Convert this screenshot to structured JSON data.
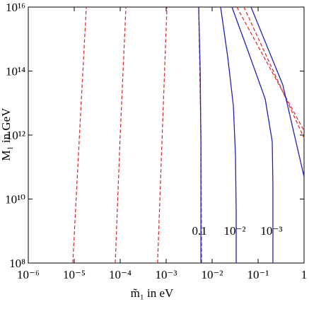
{
  "chart_data": {
    "type": "line",
    "x_label": "m̃₁ in eV",
    "y_label": "M₁ in GeV",
    "xscale": "log",
    "yscale": "log",
    "xlim": [
      1e-06,
      1
    ],
    "ylim": [
      100000000.0,
      1e+16
    ],
    "xticks": [
      {
        "value": 1e-06,
        "label": "10⁻⁶"
      },
      {
        "value": 1e-05,
        "label": "10⁻⁵"
      },
      {
        "value": 0.0001,
        "label": "10⁻⁴"
      },
      {
        "value": 0.001,
        "label": "10⁻³"
      },
      {
        "value": 0.01,
        "label": "10⁻²"
      },
      {
        "value": 0.1,
        "label": "10⁻¹"
      },
      1
    ],
    "yticks": [
      {
        "value": 100000000.0,
        "label": "10⁸"
      },
      {
        "value": 10000000000.0,
        "label": "10¹⁰"
      },
      {
        "value": 1000000000000.0,
        "label": "10¹²"
      },
      {
        "value": 100000000000000.0,
        "label": "10¹⁴"
      },
      {
        "value": 1e+16,
        "label": "10¹⁶"
      }
    ],
    "series": [
      {
        "color": "#e03030",
        "style": "dashed",
        "x": [
          9.3e-06,
          1.3e-05,
          1.83e-05
        ],
        "values": [
          100000000.0,
          1000000000000.0,
          1e+16
        ]
      },
      {
        "color": "#e03030",
        "style": "dashed",
        "x": [
          7.8e-05,
          0.0001,
          0.000133
        ],
        "values": [
          100000000.0,
          1000000000000.0,
          1e+16
        ]
      },
      {
        "color": "#e03030",
        "style": "dashed",
        "x": [
          0.00065,
          0.00082,
          0.00104
        ],
        "values": [
          100000000.0,
          1000000000000.0,
          1e+16
        ]
      },
      {
        "color": "#e03030",
        "style": "dashed",
        "x": [
          0.0059,
          0.0057,
          0.0051
        ],
        "values": [
          100000000.0,
          1000000000000.0,
          1e+16
        ]
      },
      {
        "color": "#e03030",
        "style": "dashed",
        "x": [
          0.0345,
          1
        ],
        "values": [
          1e+16,
          1350000000000.0
        ]
      },
      {
        "color": "#e03030",
        "style": "dashed",
        "x": [
          0.0492,
          1
        ],
        "values": [
          1e+16,
          810000000000.0
        ]
      },
      {
        "name": "0.1",
        "color": "#2020c0",
        "style": "solid",
        "x": [
          0.0051,
          0.0055,
          0.0057,
          0.0057
        ],
        "values": [
          1e+16,
          102000000000000.0,
          630000000000.0,
          100000000.0
        ]
      },
      {
        "name": "10⁻²",
        "color": "#2020c0",
        "style": "solid",
        "x": [
          0.0153,
          0.0218,
          0.029,
          0.0322,
          0.0334,
          0.0334
        ],
        "values": [
          1e+16,
          280000000000000.0,
          8100000000000.0,
          230000000000.0,
          3900000000.0,
          100000000.0
        ]
      },
      {
        "name": "10⁻³",
        "color": "#2020c0",
        "style": "solid",
        "x": [
          0.027,
          0.0588,
          0.1426,
          0.203,
          0.21,
          0.21
        ],
        "values": [
          1e+16,
          470000000000000.0,
          13500000000000.0,
          630000000000.0,
          30000000000.0,
          100000000.0
        ]
      },
      {
        "color": "#2020c0",
        "style": "solid",
        "x": [
          0.0702,
          0.345,
          1
        ],
        "values": [
          1e+16,
          37000000000000.0,
          50000000000.0
        ]
      }
    ]
  }
}
